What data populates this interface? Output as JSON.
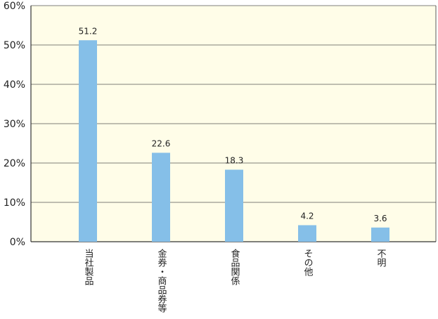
{
  "chart_data": {
    "type": "bar",
    "categories": [
      "当社製品",
      "金券・商品券等",
      "食品関係",
      "その他",
      "不明"
    ],
    "values": [
      51.2,
      22.6,
      18.3,
      4.2,
      3.6
    ],
    "color": "#85bfe8",
    "ylim": [
      0,
      60
    ],
    "yticks": [
      {
        "value": 0,
        "label": "0%"
      },
      {
        "value": 10,
        "label": "10%"
      },
      {
        "value": 20,
        "label": "20%"
      },
      {
        "value": 30,
        "label": "30%"
      },
      {
        "value": 40,
        "label": "40%"
      },
      {
        "value": 50,
        "label": "50%"
      },
      {
        "value": 60,
        "label": "60%"
      }
    ],
    "grid": true
  }
}
